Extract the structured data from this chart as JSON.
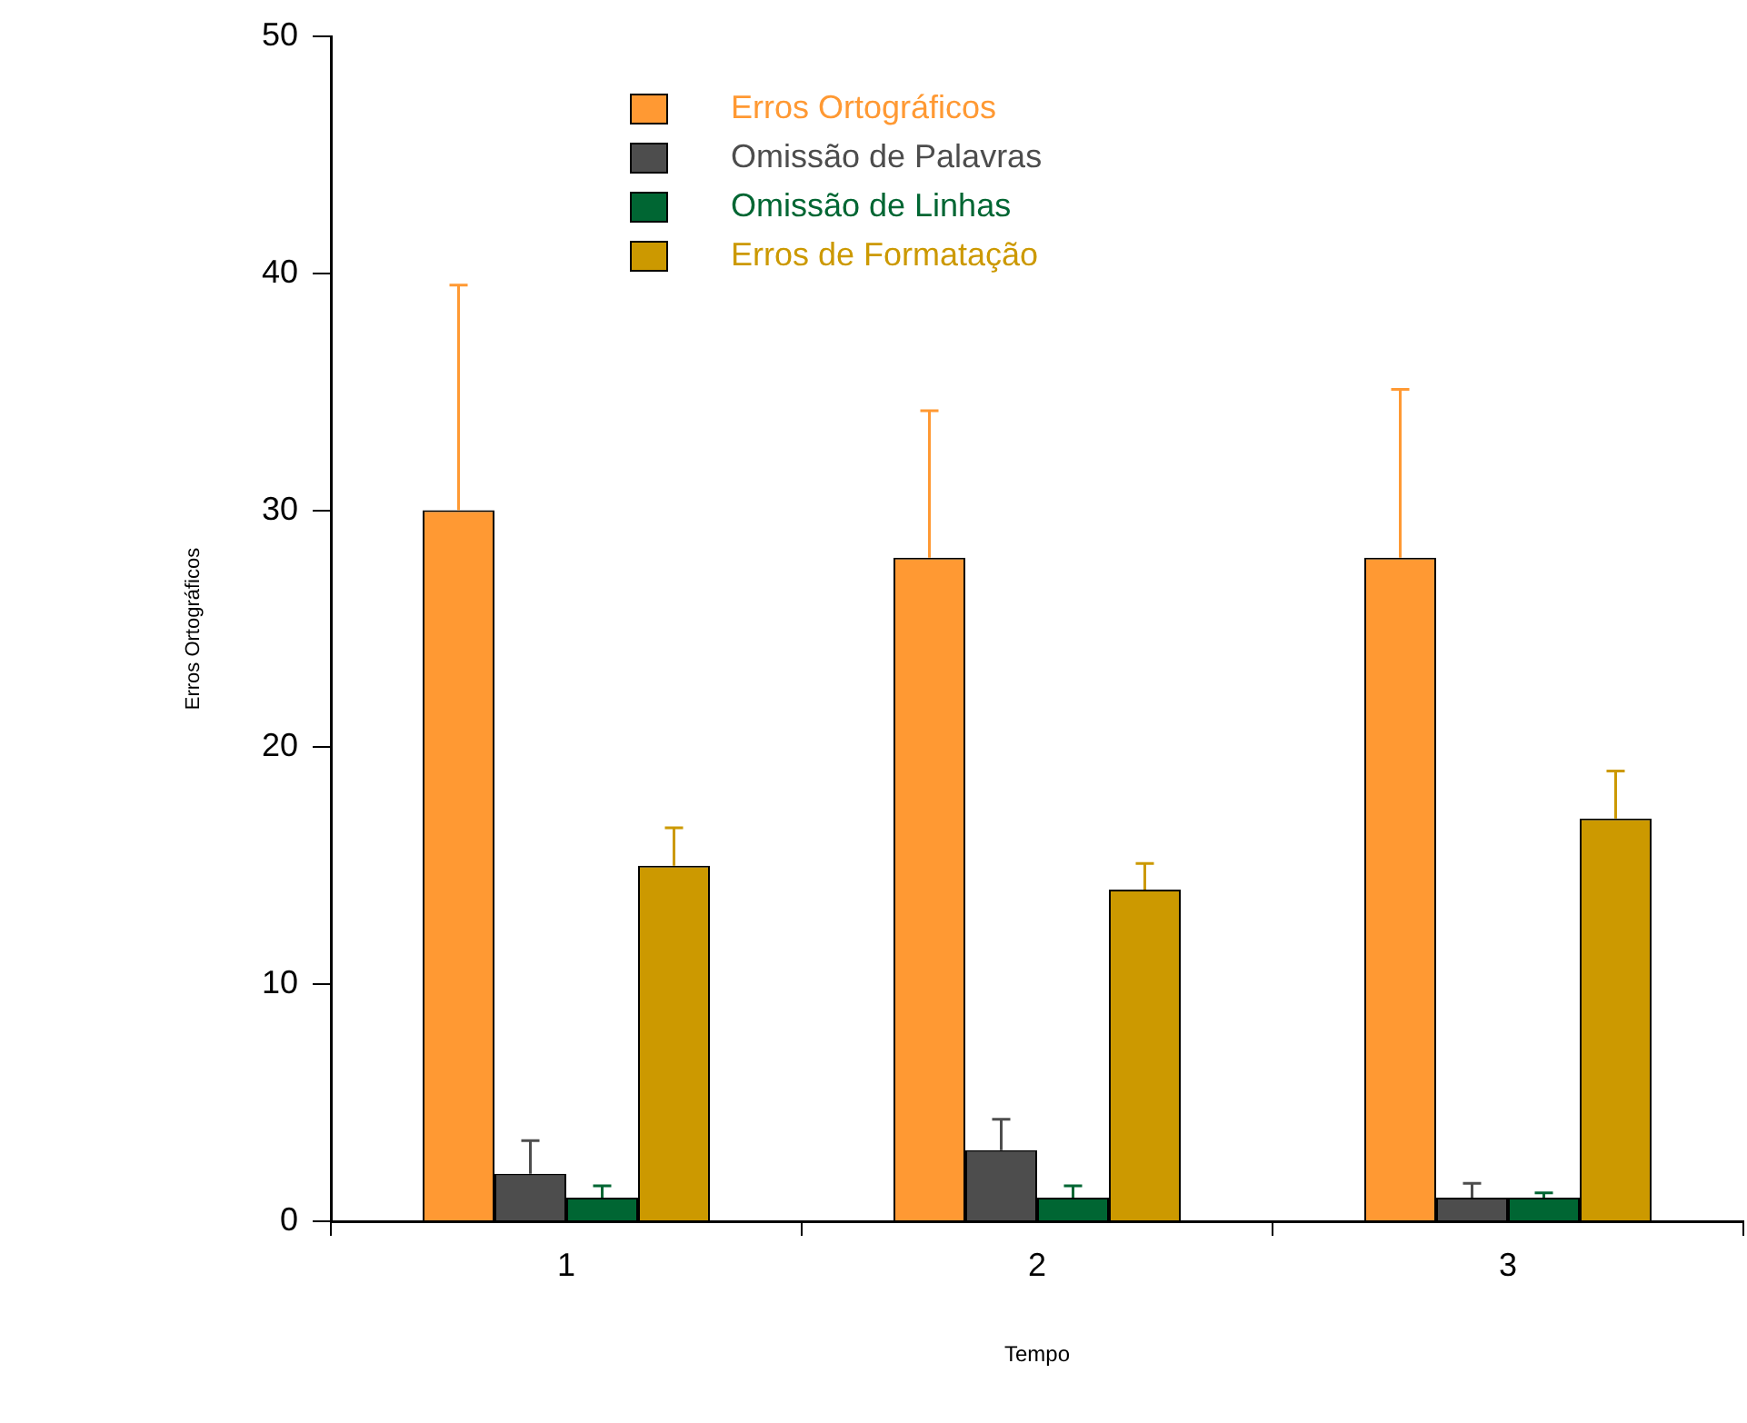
{
  "chart_data": {
    "type": "bar",
    "xlabel": "Tempo",
    "ylabel": "Erros Ortográficos",
    "categories": [
      "1",
      "2",
      "3"
    ],
    "series": [
      {
        "name": "Erros Ortográficos",
        "color": "#ff9933",
        "values": [
          30,
          28,
          28
        ],
        "errors": [
          [
            30,
            39.5
          ],
          [
            28,
            34.2
          ],
          [
            28,
            35.1
          ]
        ]
      },
      {
        "name": "Omissão de Palavras",
        "color": "#4d4d4d",
        "values": [
          2,
          3,
          1
        ],
        "errors": [
          [
            2,
            3.4
          ],
          [
            3,
            4.3
          ],
          [
            1,
            1.6
          ]
        ]
      },
      {
        "name": "Omissão de Linhas",
        "color": "#006633",
        "values": [
          1,
          1,
          1
        ],
        "errors": [
          [
            1,
            1.5
          ],
          [
            1,
            1.5
          ],
          [
            1,
            1.2
          ]
        ]
      },
      {
        "name": "Erros de Formatação",
        "color": "#cc9900",
        "values": [
          15,
          14,
          17
        ],
        "errors": [
          [
            15,
            16.6
          ],
          [
            14,
            15.1
          ],
          [
            17,
            19.0
          ]
        ]
      }
    ],
    "ylim": [
      0,
      50
    ],
    "yticks": [
      0,
      10,
      20,
      30,
      40,
      50
    ],
    "grid": false,
    "legend": "top"
  }
}
